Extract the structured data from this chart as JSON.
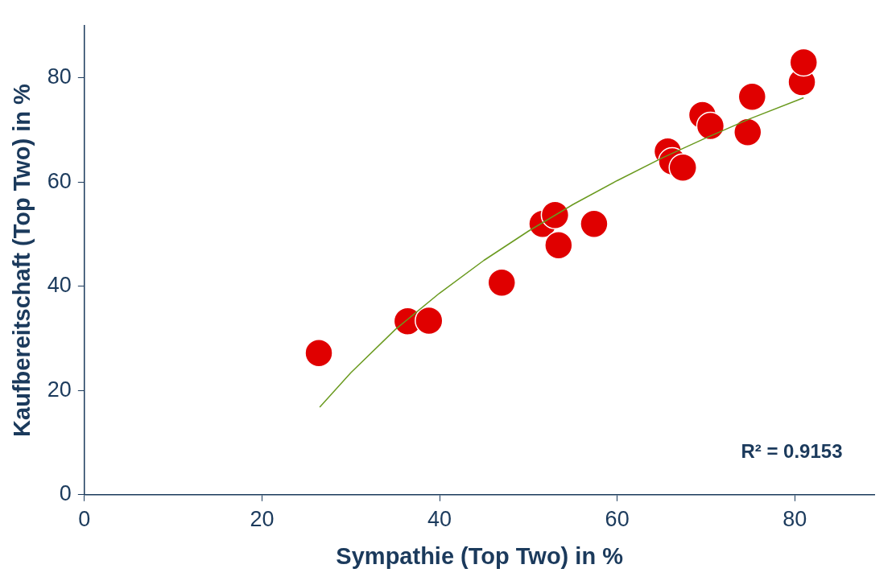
{
  "chart_data": {
    "type": "scatter",
    "xlabel": "Sympathie (Top Two) in %",
    "ylabel": "Kaufbereitschaft (Top Two) in %",
    "xlim": [
      0,
      89
    ],
    "ylim": [
      0,
      90
    ],
    "xticks": [
      0,
      20,
      40,
      60,
      80
    ],
    "yticks": [
      0,
      20,
      40,
      60,
      80
    ],
    "grid": false,
    "legend": false,
    "marker": "circle",
    "annotations": [
      "R² = 0.9153"
    ],
    "series": [
      {
        "type": "scatter",
        "color": "#e00000",
        "x": [
          26.4,
          36.4,
          38.8,
          47.0,
          51.6,
          53.0,
          53.4,
          57.4,
          65.7,
          66.2,
          67.4,
          69.6,
          70.5,
          74.7,
          75.2,
          80.8,
          81.0
        ],
        "values": [
          27.2,
          33.3,
          33.4,
          40.7,
          52.0,
          53.7,
          47.9,
          52.0,
          65.9,
          64.0,
          62.8,
          72.9,
          70.8,
          69.6,
          76.4,
          79.2,
          83.0
        ]
      },
      {
        "type": "line",
        "color": "#6a9a1f",
        "marker": "none",
        "x": [
          26.5,
          30,
          35,
          40,
          45,
          50,
          55,
          60,
          65,
          70,
          75,
          81
        ],
        "values": [
          16.8,
          23.4,
          31.7,
          38.7,
          45.0,
          50.6,
          55.7,
          60.3,
          64.6,
          68.5,
          72.2,
          76.2
        ]
      }
    ]
  }
}
